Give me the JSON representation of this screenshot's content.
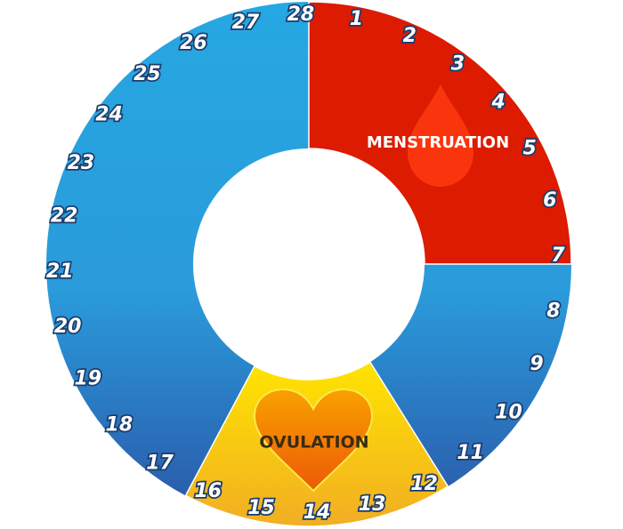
{
  "phases": [
    {
      "label": "MENSTRUATION"
    },
    {
      "label": "OVULATION"
    }
  ],
  "days": [
    1,
    2,
    3,
    4,
    5,
    6,
    7,
    8,
    9,
    10,
    11,
    12,
    13,
    14,
    15,
    16,
    17,
    18,
    19,
    20,
    21,
    22,
    23,
    24,
    25,
    26,
    27,
    28
  ]
}
